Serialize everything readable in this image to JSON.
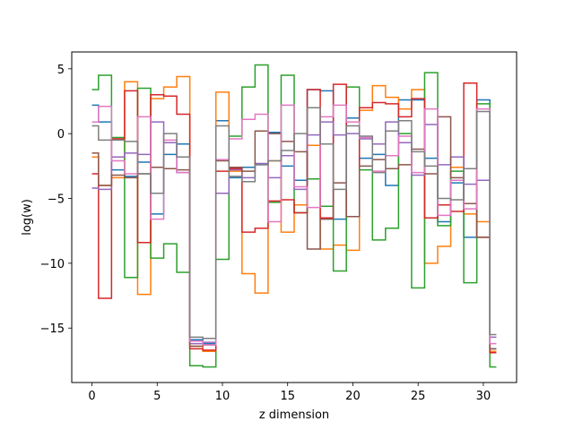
{
  "chart_data": {
    "type": "line",
    "step": "mid",
    "title": "",
    "xlabel": "z dimension",
    "ylabel": "log(w)",
    "xlim": [
      -1.55,
      32.55
    ],
    "ylim": [
      -19.2,
      6.3
    ],
    "xticks": [
      0,
      5,
      10,
      15,
      20,
      25,
      30
    ],
    "yticks": [
      -15,
      -10,
      -5,
      0,
      5
    ],
    "legend": "none",
    "grid": false,
    "x": [
      0,
      1,
      2,
      3,
      4,
      5,
      6,
      7,
      8,
      9,
      10,
      11,
      12,
      13,
      14,
      15,
      16,
      17,
      18,
      19,
      20,
      21,
      22,
      23,
      24,
      25,
      26,
      27,
      28,
      29,
      30,
      31
    ],
    "series": [
      {
        "color": "#1f77b4",
        "values": [
          2.2,
          0.9,
          -2.8,
          -3.3,
          -2.2,
          -6.2,
          -1.6,
          -0.8,
          -15.9,
          -16.2,
          1.0,
          -3.4,
          -2.6,
          -2.4,
          0.1,
          -2.5,
          -3.6,
          3.4,
          3.3,
          -6.6,
          1.2,
          -1.9,
          -1.6,
          -4.0,
          2.6,
          2.6,
          -1.9,
          -6.8,
          -3.8,
          -8.0,
          2.6,
          -16.6
        ]
      },
      {
        "color": "#ff7f0e",
        "values": [
          -1.8,
          -4.0,
          -3.4,
          4.0,
          -12.4,
          2.7,
          3.6,
          4.4,
          -16.4,
          -16.8,
          3.2,
          -2.9,
          -10.8,
          -12.3,
          -2.1,
          -7.6,
          -5.5,
          -0.9,
          -8.9,
          -8.6,
          -9.0,
          1.8,
          3.7,
          2.8,
          1.9,
          3.4,
          -10.0,
          -8.7,
          -2.6,
          -6.2,
          -6.8,
          -16.8
        ]
      },
      {
        "color": "#2ca02c",
        "values": [
          3.4,
          4.5,
          -0.3,
          -11.1,
          3.5,
          -9.6,
          -8.5,
          -10.7,
          -17.9,
          -18.0,
          -9.7,
          -0.2,
          3.6,
          5.3,
          -5.3,
          4.5,
          -6.1,
          -3.5,
          -5.6,
          -10.6,
          3.6,
          -2.8,
          -8.2,
          -7.3,
          0.0,
          -11.9,
          4.7,
          -7.1,
          -2.9,
          -11.5,
          2.3,
          -18.0
        ]
      },
      {
        "color": "#d62728",
        "values": [
          -3.1,
          -12.7,
          -0.4,
          3.3,
          -8.4,
          3.0,
          2.9,
          1.5,
          -16.6,
          -16.7,
          -2.9,
          -2.7,
          -7.6,
          -7.3,
          -5.2,
          -5.1,
          -6.1,
          3.4,
          -6.5,
          3.8,
          -6.4,
          2.0,
          2.4,
          2.3,
          1.3,
          2.7,
          -6.5,
          -5.5,
          -6.0,
          3.9,
          -8.0,
          -16.9
        ]
      },
      {
        "color": "#9467bd",
        "values": [
          -4.2,
          -4.3,
          -1.8,
          -1.5,
          -1.6,
          0.9,
          -0.7,
          -3.0,
          -16.2,
          -16.1,
          -4.6,
          -2.8,
          -3.4,
          -2.3,
          -3.4,
          -1.7,
          -4.3,
          -0.1,
          0.9,
          -0.1,
          0.0,
          -0.4,
          -0.8,
          0.9,
          -0.7,
          -3.2,
          0.7,
          -2.4,
          -1.8,
          -3.9,
          -3.6,
          -15.7
        ]
      },
      {
        "color": "#8c564b",
        "values": [
          -1.5,
          -4.0,
          -3.2,
          -3.4,
          -3.1,
          -2.6,
          -2.7,
          -2.8,
          -16.4,
          -16.3,
          -2.1,
          -2.6,
          -2.9,
          0.2,
          0.0,
          -0.6,
          -1.4,
          -8.9,
          -6.6,
          -3.8,
          -6.4,
          -2.5,
          -2.0,
          -2.7,
          -2.4,
          -1.2,
          -3.1,
          1.3,
          -3.4,
          -5.4,
          -8.0,
          -16.6
        ]
      },
      {
        "color": "#e377c2",
        "values": [
          0.9,
          2.1,
          -2.1,
          -3.1,
          1.3,
          -6.6,
          -0.5,
          -3.0,
          -16.0,
          -16.3,
          -2.0,
          -0.4,
          1.1,
          1.5,
          -6.8,
          2.2,
          -4.1,
          -5.7,
          1.3,
          2.2,
          0.9,
          -0.3,
          -2.9,
          -1.7,
          -0.2,
          -3.0,
          1.9,
          -6.3,
          -3.6,
          -5.8,
          1.9,
          -16.2
        ]
      },
      {
        "color": "#7f7f7f",
        "values": [
          0.6,
          -0.5,
          -0.5,
          -0.6,
          -3.1,
          -4.6,
          0.0,
          -1.8,
          -15.7,
          -15.8,
          0.6,
          -3.3,
          -3.7,
          -2.4,
          -2.1,
          -1.3,
          0.0,
          2.0,
          -0.8,
          -4.3,
          0.6,
          -0.2,
          -3.0,
          0.2,
          1.0,
          -1.4,
          -2.5,
          -5.0,
          -5.1,
          -2.7,
          1.7,
          -15.5
        ]
      }
    ]
  }
}
